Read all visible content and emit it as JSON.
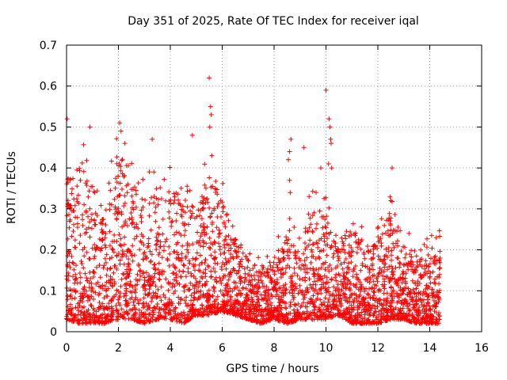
{
  "chart_data": {
    "type": "scatter",
    "title": "Day 351 of 2025, Rate Of TEC Index for receiver iqal",
    "xlabel": "GPS time / hours",
    "ylabel": "ROTI / TECUs",
    "xlim": [
      0,
      16
    ],
    "ylim": [
      0,
      0.7
    ],
    "xticks": [
      0,
      2,
      4,
      6,
      8,
      10,
      12,
      14,
      16
    ],
    "yticks": [
      0,
      0.1,
      0.2,
      0.3,
      0.4,
      0.5,
      0.6,
      0.7
    ],
    "xtick_labels": [
      "0",
      "2",
      "4",
      "6",
      "8",
      "10",
      "12",
      "14",
      "16"
    ],
    "ytick_labels": [
      "0",
      "0.1",
      "0.2",
      "0.3",
      "0.4",
      "0.5",
      "0.6",
      "0.7"
    ],
    "grid": true,
    "marker": "+",
    "series_color": "#ff0000",
    "data_span_hours": [
      0,
      14.4
    ],
    "envelope": [
      {
        "x": 0.0,
        "base": 0.03,
        "peak": 0.32
      },
      {
        "x": 0.5,
        "base": 0.02,
        "peak": 0.4
      },
      {
        "x": 1.0,
        "base": 0.02,
        "peak": 0.37
      },
      {
        "x": 1.5,
        "base": 0.02,
        "peak": 0.3
      },
      {
        "x": 2.0,
        "base": 0.03,
        "peak": 0.42
      },
      {
        "x": 2.5,
        "base": 0.03,
        "peak": 0.36
      },
      {
        "x": 3.0,
        "base": 0.02,
        "peak": 0.33
      },
      {
        "x": 3.5,
        "base": 0.03,
        "peak": 0.36
      },
      {
        "x": 4.0,
        "base": 0.03,
        "peak": 0.34
      },
      {
        "x": 4.5,
        "base": 0.02,
        "peak": 0.34
      },
      {
        "x": 5.0,
        "base": 0.04,
        "peak": 0.3
      },
      {
        "x": 5.5,
        "base": 0.04,
        "peak": 0.38
      },
      {
        "x": 6.0,
        "base": 0.05,
        "peak": 0.33
      },
      {
        "x": 6.5,
        "base": 0.04,
        "peak": 0.22
      },
      {
        "x": 7.0,
        "base": 0.03,
        "peak": 0.18
      },
      {
        "x": 7.5,
        "base": 0.02,
        "peak": 0.15
      },
      {
        "x": 8.0,
        "base": 0.03,
        "peak": 0.18
      },
      {
        "x": 8.5,
        "base": 0.02,
        "peak": 0.24
      },
      {
        "x": 9.0,
        "base": 0.03,
        "peak": 0.22
      },
      {
        "x": 9.5,
        "base": 0.03,
        "peak": 0.3
      },
      {
        "x": 10.0,
        "base": 0.03,
        "peak": 0.28
      },
      {
        "x": 10.5,
        "base": 0.04,
        "peak": 0.2
      },
      {
        "x": 11.0,
        "base": 0.02,
        "peak": 0.28
      },
      {
        "x": 11.5,
        "base": 0.02,
        "peak": 0.2
      },
      {
        "x": 12.0,
        "base": 0.02,
        "peak": 0.22
      },
      {
        "x": 12.5,
        "base": 0.03,
        "peak": 0.3
      },
      {
        "x": 13.0,
        "base": 0.03,
        "peak": 0.18
      },
      {
        "x": 13.5,
        "base": 0.02,
        "peak": 0.17
      },
      {
        "x": 14.0,
        "base": 0.02,
        "peak": 0.2
      },
      {
        "x": 14.4,
        "base": 0.02,
        "peak": 0.22
      }
    ],
    "outliers": [
      {
        "x": 0.02,
        "y": 0.52
      },
      {
        "x": 0.9,
        "y": 0.5
      },
      {
        "x": 2.05,
        "y": 0.51
      },
      {
        "x": 2.1,
        "y": 0.49
      },
      {
        "x": 2.25,
        "y": 0.46
      },
      {
        "x": 3.3,
        "y": 0.47
      },
      {
        "x": 4.85,
        "y": 0.48
      },
      {
        "x": 5.5,
        "y": 0.62
      },
      {
        "x": 5.55,
        "y": 0.55
      },
      {
        "x": 5.58,
        "y": 0.53
      },
      {
        "x": 5.52,
        "y": 0.5
      },
      {
        "x": 5.6,
        "y": 0.43
      },
      {
        "x": 8.65,
        "y": 0.47
      },
      {
        "x": 8.6,
        "y": 0.44
      },
      {
        "x": 8.55,
        "y": 0.42
      },
      {
        "x": 8.6,
        "y": 0.37
      },
      {
        "x": 8.62,
        "y": 0.34
      },
      {
        "x": 9.15,
        "y": 0.45
      },
      {
        "x": 9.35,
        "y": 0.33
      },
      {
        "x": 9.8,
        "y": 0.4
      },
      {
        "x": 10.0,
        "y": 0.59
      },
      {
        "x": 10.12,
        "y": 0.52
      },
      {
        "x": 10.15,
        "y": 0.5
      },
      {
        "x": 10.18,
        "y": 0.47
      },
      {
        "x": 10.2,
        "y": 0.46
      },
      {
        "x": 10.1,
        "y": 0.41
      },
      {
        "x": 10.22,
        "y": 0.4
      },
      {
        "x": 12.55,
        "y": 0.4
      },
      {
        "x": 12.5,
        "y": 0.32
      },
      {
        "x": 13.2,
        "y": 0.24
      },
      {
        "x": 14.25,
        "y": 0.23
      }
    ]
  }
}
